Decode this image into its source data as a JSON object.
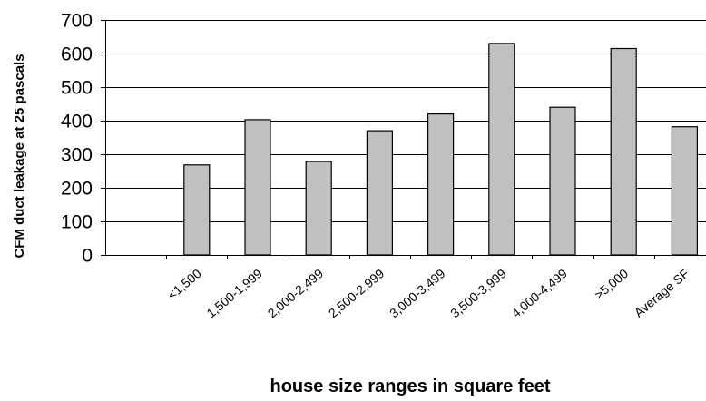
{
  "chart_data": {
    "type": "bar",
    "categories": [
      "<1,500",
      "1,500-1,999",
      "2,000-2,499",
      "2,500-2,999",
      "3,000-3,499",
      "3,500-3,999",
      "4,000-4,499",
      ">5,000",
      "Average SF"
    ],
    "values": [
      268,
      403,
      278,
      370,
      420,
      630,
      440,
      615,
      382
    ],
    "title": "",
    "xlabel": "house size ranges in square feet",
    "ylabel": "CFM duct leakage at 25 pascals",
    "ylim": [
      0,
      700
    ],
    "yticks": [
      0,
      100,
      200,
      300,
      400,
      500,
      600,
      700
    ],
    "grid": true,
    "legend": "none",
    "colors": {
      "bar_fill": "#c0c0c0",
      "bar_stroke": "#000000",
      "grid": "#000000"
    }
  }
}
